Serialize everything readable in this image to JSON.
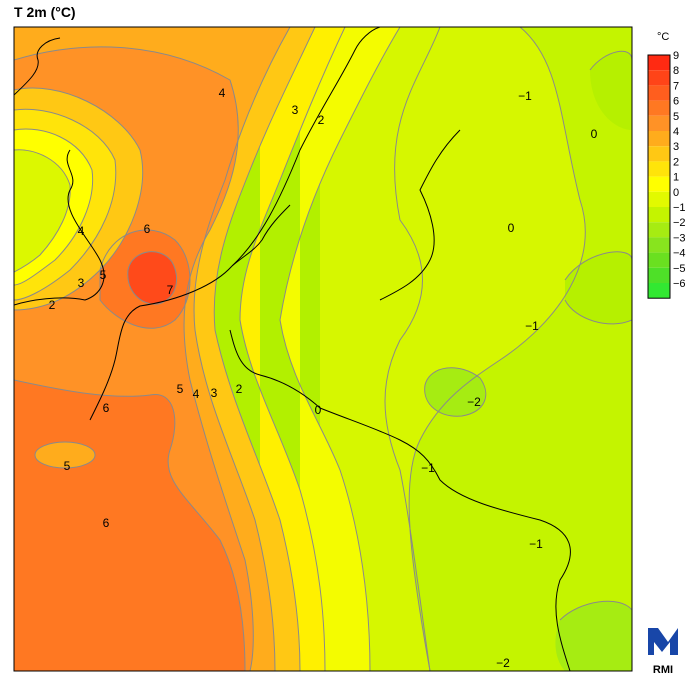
{
  "title": "T 2m (°C)",
  "legend": {
    "unit": "°C",
    "levels": [
      {
        "value": "9",
        "color": "#ff2a12"
      },
      {
        "value": "8",
        "color": "#ff4418"
      },
      {
        "value": "7",
        "color": "#ff5e1e"
      },
      {
        "value": "6",
        "color": "#ff7822"
      },
      {
        "value": "5",
        "color": "#ff9226"
      },
      {
        "value": "4",
        "color": "#ffac1c"
      },
      {
        "value": "3",
        "color": "#ffc814"
      },
      {
        "value": "2",
        "color": "#ffe40a"
      },
      {
        "value": "1",
        "color": "#ffff00"
      },
      {
        "value": "0",
        "color": "#e2fa00"
      },
      {
        "value": "−1",
        "color": "#c4f400"
      },
      {
        "value": "−2",
        "color": "#a6ec12"
      },
      {
        "value": "−3",
        "color": "#88e41e"
      },
      {
        "value": "−4",
        "color": "#6ae020"
      },
      {
        "value": "−5",
        "color": "#4ee028"
      },
      {
        "value": "−6",
        "color": "#32e832"
      }
    ]
  },
  "contour_labels": [
    {
      "text": "4"
    },
    {
      "text": "3"
    },
    {
      "text": "2"
    },
    {
      "text": "−1"
    },
    {
      "text": "0"
    },
    {
      "text": "0"
    },
    {
      "text": "6"
    },
    {
      "text": "4"
    },
    {
      "text": "3"
    },
    {
      "text": "5"
    },
    {
      "text": "2"
    },
    {
      "text": "7"
    },
    {
      "text": "−1"
    },
    {
      "text": "5"
    },
    {
      "text": "4"
    },
    {
      "text": "3"
    },
    {
      "text": "2"
    },
    {
      "text": "−2"
    },
    {
      "text": "6"
    },
    {
      "text": "0"
    },
    {
      "text": "5"
    },
    {
      "text": "−1"
    },
    {
      "text": "6"
    },
    {
      "text": "−1"
    },
    {
      "text": "−2"
    }
  ],
  "logo": {
    "text": "RMI",
    "color": "#1846a8"
  }
}
